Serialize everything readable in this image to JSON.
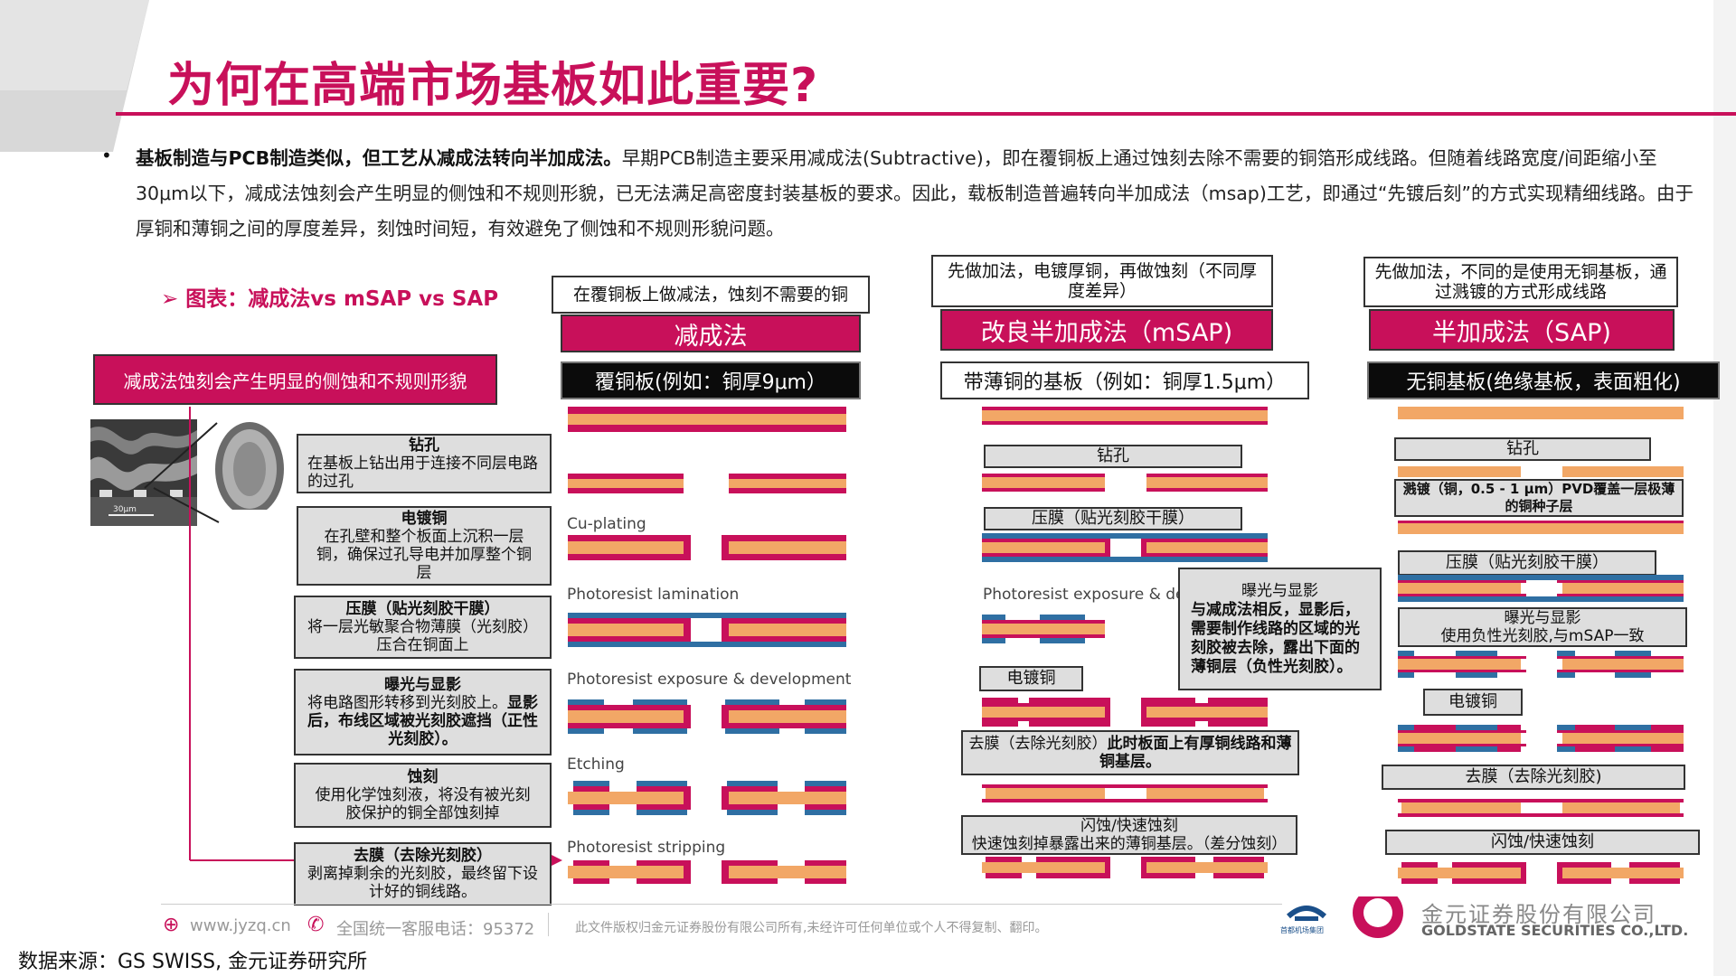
{
  "header": {
    "title": "为何在高端市场基板如此重要?"
  },
  "intro": {
    "bullet": "•",
    "bold": "基板制造与PCB制造类似，但工艺从减成法转向半加成法。",
    "text": "早期PCB制造主要采用减成法(Subtractive)，即在覆铜板上通过蚀刻去除不需要的铜箔形成线路。但随着线路宽度/间距缩小至30μm以下，减成法蚀刻会产生明显的侧蚀和不规则形貌，已无法满足高密度封装基板的要求。因此，载板制造普遍转向半加成法（msap)工艺，即通过“先镀后刻”的方式实现精细线路。由于厚铜和薄铜之间的厚度差异，刻蚀时间短，有效避免了侧蚀和不规则形貌问题。"
  },
  "chart_label": "➢ 图表：减成法vs mSAP vs SAP",
  "left_note": "减成法蚀刻会产生明显的侧蚀和不规则形貌",
  "micro_scale": "30μm",
  "steps_left": [
    {
      "title": "钻孔",
      "desc": "在基板上钻出用于连接不同层电路的过孔"
    },
    {
      "title": "电镀铜",
      "desc": "在孔壁和整个板面上沉积一层铜，确保过孔导电并加厚整个铜层"
    },
    {
      "title": "压膜（贴光刻胶干膜）",
      "desc": "将一层光敏聚合物薄膜（光刻胶）压合在铜面上"
    },
    {
      "title": "曝光与显影",
      "desc": "将电路图形转移到光刻胶上。",
      "desc_bold": "显影后，布线区域被光刻胶遮挡（正性光刻胶）。"
    },
    {
      "title": "蚀刻",
      "desc": "使用化学蚀刻液，将没有被光刻胶保护的铜全部蚀刻掉"
    },
    {
      "title": "去膜（去除光刻胶）",
      "desc": "剥离掉剩余的光刻胶，最终留下设计好的铜线路。"
    }
  ],
  "col1": {
    "note": "在覆铜板上做减法，蚀刻不需要的铜",
    "name": "减成法",
    "base": "覆铜板(例如：铜厚9μm）",
    "labels": [
      "Cu-plating",
      "Photoresist lamination",
      "Photoresist exposure & development",
      "Etching",
      "Photoresist stripping"
    ]
  },
  "col2": {
    "note": "先做加法，电镀厚铜，再做蚀刻（不同厚度差异）",
    "name": "改良半加成法（mSAP)",
    "base": "带薄铜的基板（例如：铜厚1.5μm）",
    "drill": "钻孔",
    "lamination": "压膜（贴光刻胶干膜）",
    "exposure_label": "Photoresist exposure & de",
    "exposure_title": "曝光与显影",
    "exposure_desc": "与减成法相反，显影后，需要制作线路的区域的光刻胶被去除，露出下面的薄铜层（负性光刻胶）。",
    "plating": "电镀铜",
    "strip": "去膜（去除光刻胶）",
    "strip_bold": "此时板面上有厚铜线路和薄铜基层。",
    "flash_title": "闪蚀/快速蚀刻",
    "flash_desc": "快速蚀刻掉暴露出来的薄铜基层。（差分蚀刻）"
  },
  "col3": {
    "note": "先做加法，不同的是使用无铜基板，通过溅镀的方式形成线路",
    "name": "半加成法（SAP)",
    "base": "无铜基板(绝缘基板，表面粗化)",
    "drill": "钻孔",
    "sputter": "溅镀（铜，0.5 - 1 μm）PVD覆盖一层极薄的铜种子层",
    "lamination": "压膜（贴光刻胶干膜）",
    "exposure_title": "曝光与显影",
    "exposure_desc": "使用负性光刻胶,与mSAP一致",
    "plating": "电镀铜",
    "strip": "去膜（去除光刻胶)",
    "flash": "闪蚀/快速蚀刻"
  },
  "footer": {
    "website": "www.jyzq.cn",
    "hotline": "全国统一客服电话：95372",
    "copyright": "此文件版权归金元证券股份有限公司所有,未经许可任何单位或个人不得复制、翻印。",
    "logo_partner": "首都机场集团",
    "company_cn": "金元证券股份有限公司",
    "company_en": "GOLDSTATE SECURITIES CO.,LTD."
  },
  "source": "数据来源：GS SWISS, 金元证券研究所",
  "colors": {
    "accent": "#c8105a",
    "copper": "#f2a766",
    "resist": "#2f6fa3",
    "gray_box": "#dedede"
  }
}
